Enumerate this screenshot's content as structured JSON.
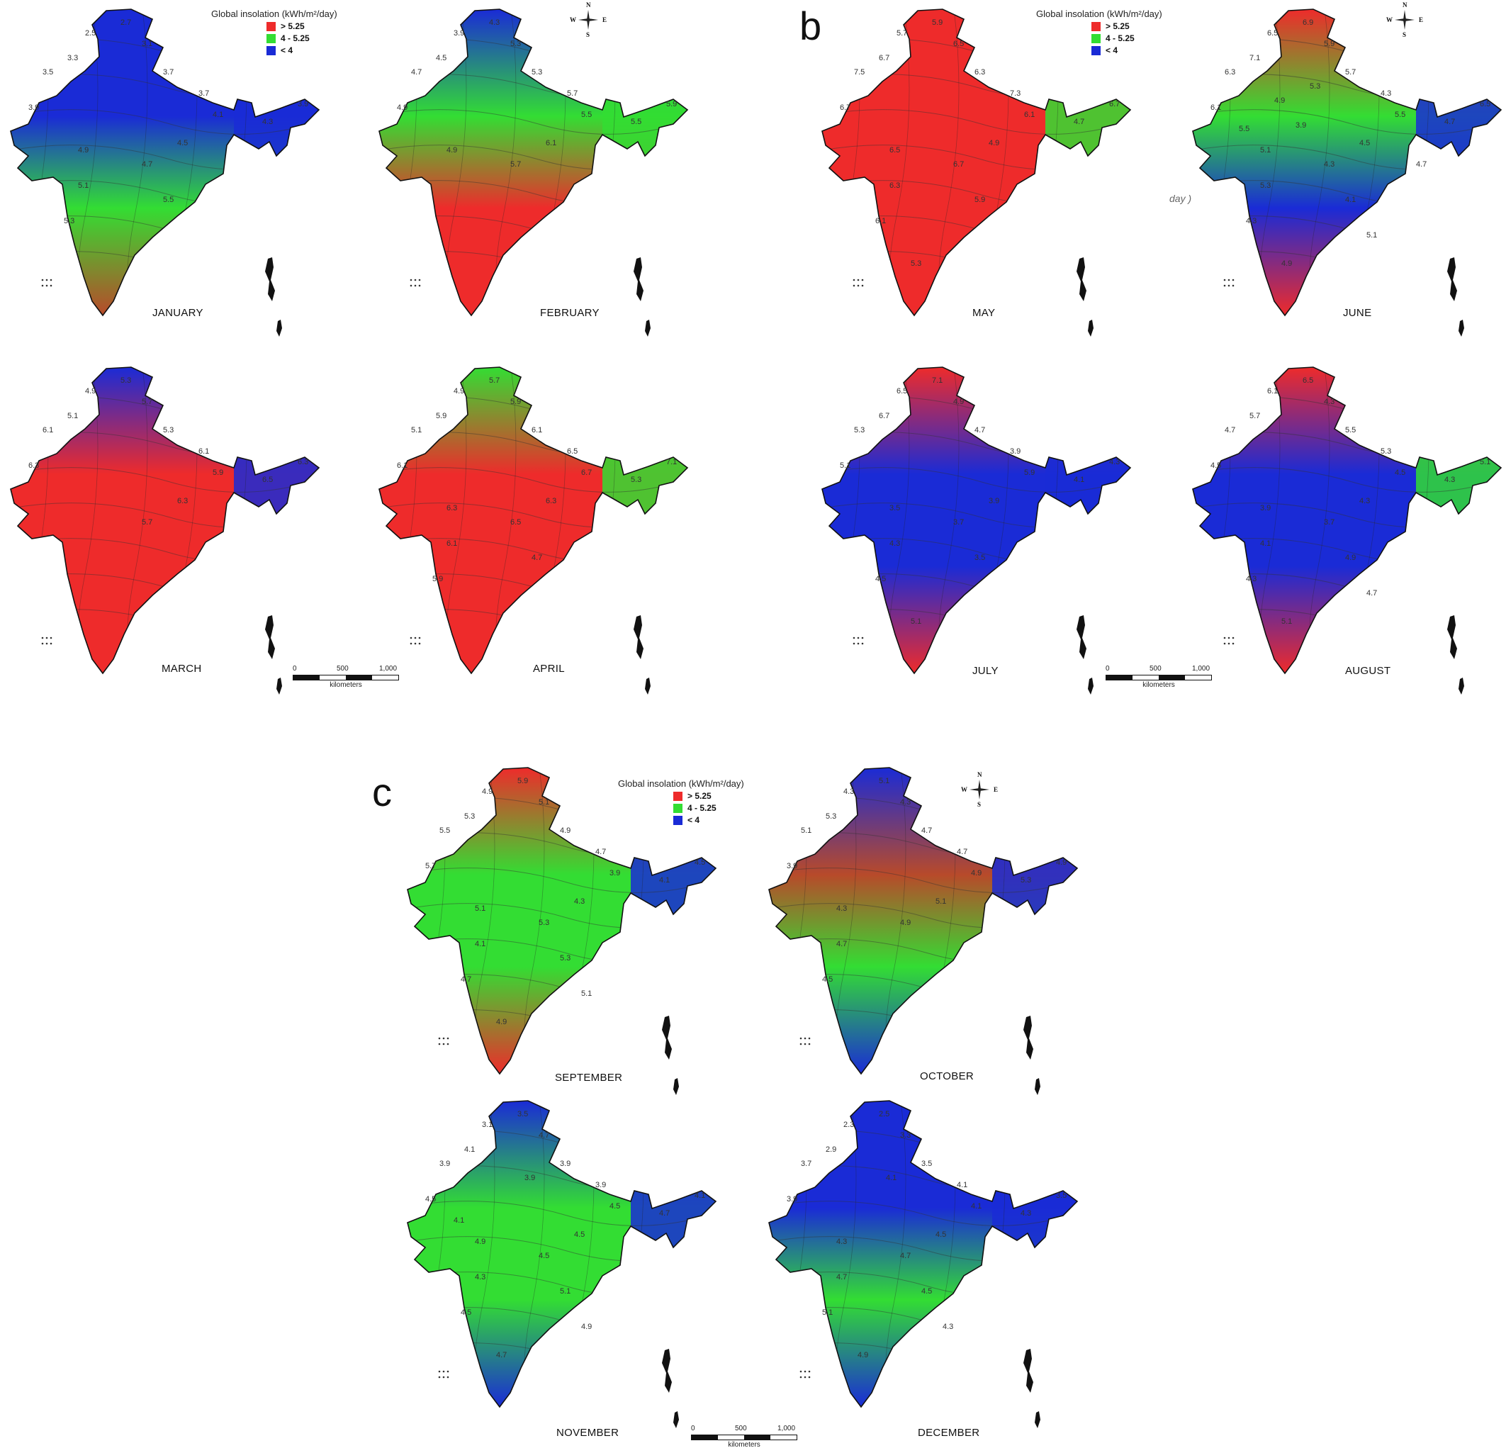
{
  "panel_letters": [
    "b",
    "c"
  ],
  "legend": {
    "title": "Global insolation (kWh/m²/day)",
    "classes": [
      {
        "label": "> 5.25",
        "color": "#ee2b2b"
      },
      {
        "label": "4 - 5.25",
        "color": "#33dd33"
      },
      {
        "label": "< 4",
        "color": "#1a2bd6"
      }
    ]
  },
  "compass": {
    "n": "N",
    "s": "S",
    "e": "E",
    "w": "W"
  },
  "scale_bar": {
    "ticks": [
      "0",
      "500",
      "1,000"
    ],
    "unit": "kilometers"
  },
  "stray_text": "day )",
  "months": [
    {
      "name": "JANUARY",
      "colors": {
        "north": "#1a2bd6",
        "mid": "#1a2bd6",
        "south": "#33dd33",
        "tip": "#b84a2a",
        "east": "#1a2bd6"
      },
      "labels": [
        "2.5",
        "2.7",
        "3.3",
        "3.5",
        "3.9",
        "3.1",
        "3.7",
        "3.7",
        "3.9",
        "4.1",
        "4.3",
        "4.5",
        "4.7",
        "4.9",
        "5.1",
        "5.3",
        "5.5"
      ]
    },
    {
      "name": "FEBRUARY",
      "colors": {
        "north": "#1a2bd6",
        "mid": "#33dd33",
        "south": "#ee2b2b",
        "tip": "#ee2b2b",
        "east": "#33dd33"
      },
      "labels": [
        "3.9",
        "4.3",
        "4.5",
        "4.7",
        "4.9",
        "5.3",
        "5.3",
        "5.7",
        "5.9",
        "5.5",
        "5.5",
        "6.1",
        "5.7",
        "4.9"
      ]
    },
    {
      "name": "MARCH",
      "colors": {
        "north": "#1a2bd6",
        "mid": "#ee2b2b",
        "south": "#ee2b2b",
        "tip": "#ee2b2b",
        "east": "#1a2bd6"
      },
      "labels": [
        "4.9",
        "5.3",
        "5.1",
        "6.1",
        "6.3",
        "5.7",
        "5.3",
        "6.1",
        "6.3",
        "5.9",
        "6.5",
        "6.3",
        "5.7"
      ]
    },
    {
      "name": "APRIL",
      "colors": {
        "north": "#33dd33",
        "mid": "#ee2b2b",
        "south": "#ee2b2b",
        "tip": "#ee2b2b",
        "east": "#33dd33"
      },
      "labels": [
        "4.9",
        "5.7",
        "5.9",
        "5.1",
        "6.1",
        "5.9",
        "6.1",
        "6.5",
        "7.1",
        "6.7",
        "5.3",
        "6.3",
        "6.5",
        "6.3",
        "6.1",
        "5.9",
        "4.7"
      ]
    },
    {
      "name": "MAY",
      "colors": {
        "north": "#ee2b2b",
        "mid": "#ee2b2b",
        "south": "#ee2b2b",
        "tip": "#ee2b2b",
        "east": "#33dd33"
      },
      "labels": [
        "5.7",
        "5.9",
        "6.7",
        "7.5",
        "6.7",
        "6.5",
        "6.3",
        "7.3",
        "6.7",
        "6.1",
        "4.7",
        "4.9",
        "6.7",
        "6.5",
        "6.3",
        "6.1",
        "5.9",
        "5.3"
      ]
    },
    {
      "name": "JUNE",
      "colors": {
        "north": "#ee2b2b",
        "mid": "#33dd33",
        "south": "#1a2bd6",
        "tip": "#ee2b2b",
        "east": "#1a2bd6"
      },
      "labels": [
        "6.5",
        "6.9",
        "7.1",
        "6.3",
        "6.1",
        "5.9",
        "5.7",
        "4.3",
        "6.5",
        "5.5",
        "4.7",
        "4.5",
        "4.3",
        "5.1",
        "5.3",
        "4.3",
        "4.1",
        "4.9",
        "5.1",
        "5.3",
        "5.5",
        "3.9",
        "4.7",
        "4.9"
      ]
    },
    {
      "name": "JULY",
      "colors": {
        "north": "#ee2b2b",
        "mid": "#1a2bd6",
        "south": "#1a2bd6",
        "tip": "#ee2b2b",
        "east": "#1a2bd6"
      },
      "labels": [
        "6.5",
        "7.1",
        "6.7",
        "5.3",
        "5.1",
        "4.9",
        "4.7",
        "3.9",
        "4.3",
        "5.9",
        "4.1",
        "3.9",
        "3.7",
        "3.5",
        "4.3",
        "4.5",
        "3.5",
        "5.1"
      ]
    },
    {
      "name": "AUGUST",
      "colors": {
        "north": "#ee2b2b",
        "mid": "#1a2bd6",
        "south": "#1a2bd6",
        "tip": "#ee2b2b",
        "east": "#33dd33"
      },
      "labels": [
        "6.1",
        "6.5",
        "5.7",
        "4.7",
        "4.5",
        "4.3",
        "5.5",
        "5.3",
        "5.1",
        "4.5",
        "4.3",
        "4.3",
        "3.7",
        "3.9",
        "4.1",
        "4.3",
        "4.9",
        "5.1",
        "4.7"
      ]
    },
    {
      "name": "SEPTEMBER",
      "colors": {
        "north": "#ee2b2b",
        "mid": "#33dd33",
        "south": "#33dd33",
        "tip": "#ee2b2b",
        "east": "#1a2bd6"
      },
      "labels": [
        "4.9",
        "5.9",
        "5.3",
        "5.5",
        "5.7",
        "5.1",
        "4.9",
        "4.7",
        "4.5",
        "3.9",
        "4.1",
        "4.3",
        "5.3",
        "5.1",
        "4.1",
        "4.7",
        "5.3",
        "4.9",
        "5.1"
      ]
    },
    {
      "name": "OCTOBER",
      "colors": {
        "north": "#1a2bd6",
        "mid": "#b84a2a",
        "south": "#33dd33",
        "tip": "#1a2bd6",
        "east": "#1a2bd6"
      },
      "labels": [
        "4.3",
        "5.1",
        "5.3",
        "5.1",
        "3.9",
        "4.3",
        "4.7",
        "4.7",
        "4.9",
        "4.9",
        "5.3",
        "5.1",
        "4.9",
        "4.3",
        "4.7",
        "4.5"
      ]
    },
    {
      "name": "NOVEMBER",
      "colors": {
        "north": "#1a2bd6",
        "mid": "#33dd33",
        "south": "#33dd33",
        "tip": "#1a2bd6",
        "east": "#1a2bd6"
      },
      "labels": [
        "3.1",
        "3.5",
        "4.1",
        "3.9",
        "4.5",
        "4.7",
        "3.9",
        "3.9",
        "4.1",
        "4.5",
        "4.7",
        "4.5",
        "4.5",
        "4.9",
        "4.3",
        "4.5",
        "5.1",
        "4.7",
        "4.9",
        "3.9",
        "4.1"
      ]
    },
    {
      "name": "DECEMBER",
      "colors": {
        "north": "#1a2bd6",
        "mid": "#1a2bd6",
        "south": "#33dd33",
        "tip": "#1a2bd6",
        "east": "#1a2bd6"
      },
      "labels": [
        "2.3",
        "2.5",
        "2.9",
        "3.7",
        "3.9",
        "3.3",
        "3.5",
        "4.1",
        "3.5",
        "4.1",
        "4.3",
        "4.5",
        "4.7",
        "4.3",
        "4.7",
        "5.1",
        "4.5",
        "4.9",
        "4.3",
        "4.1"
      ]
    }
  ]
}
